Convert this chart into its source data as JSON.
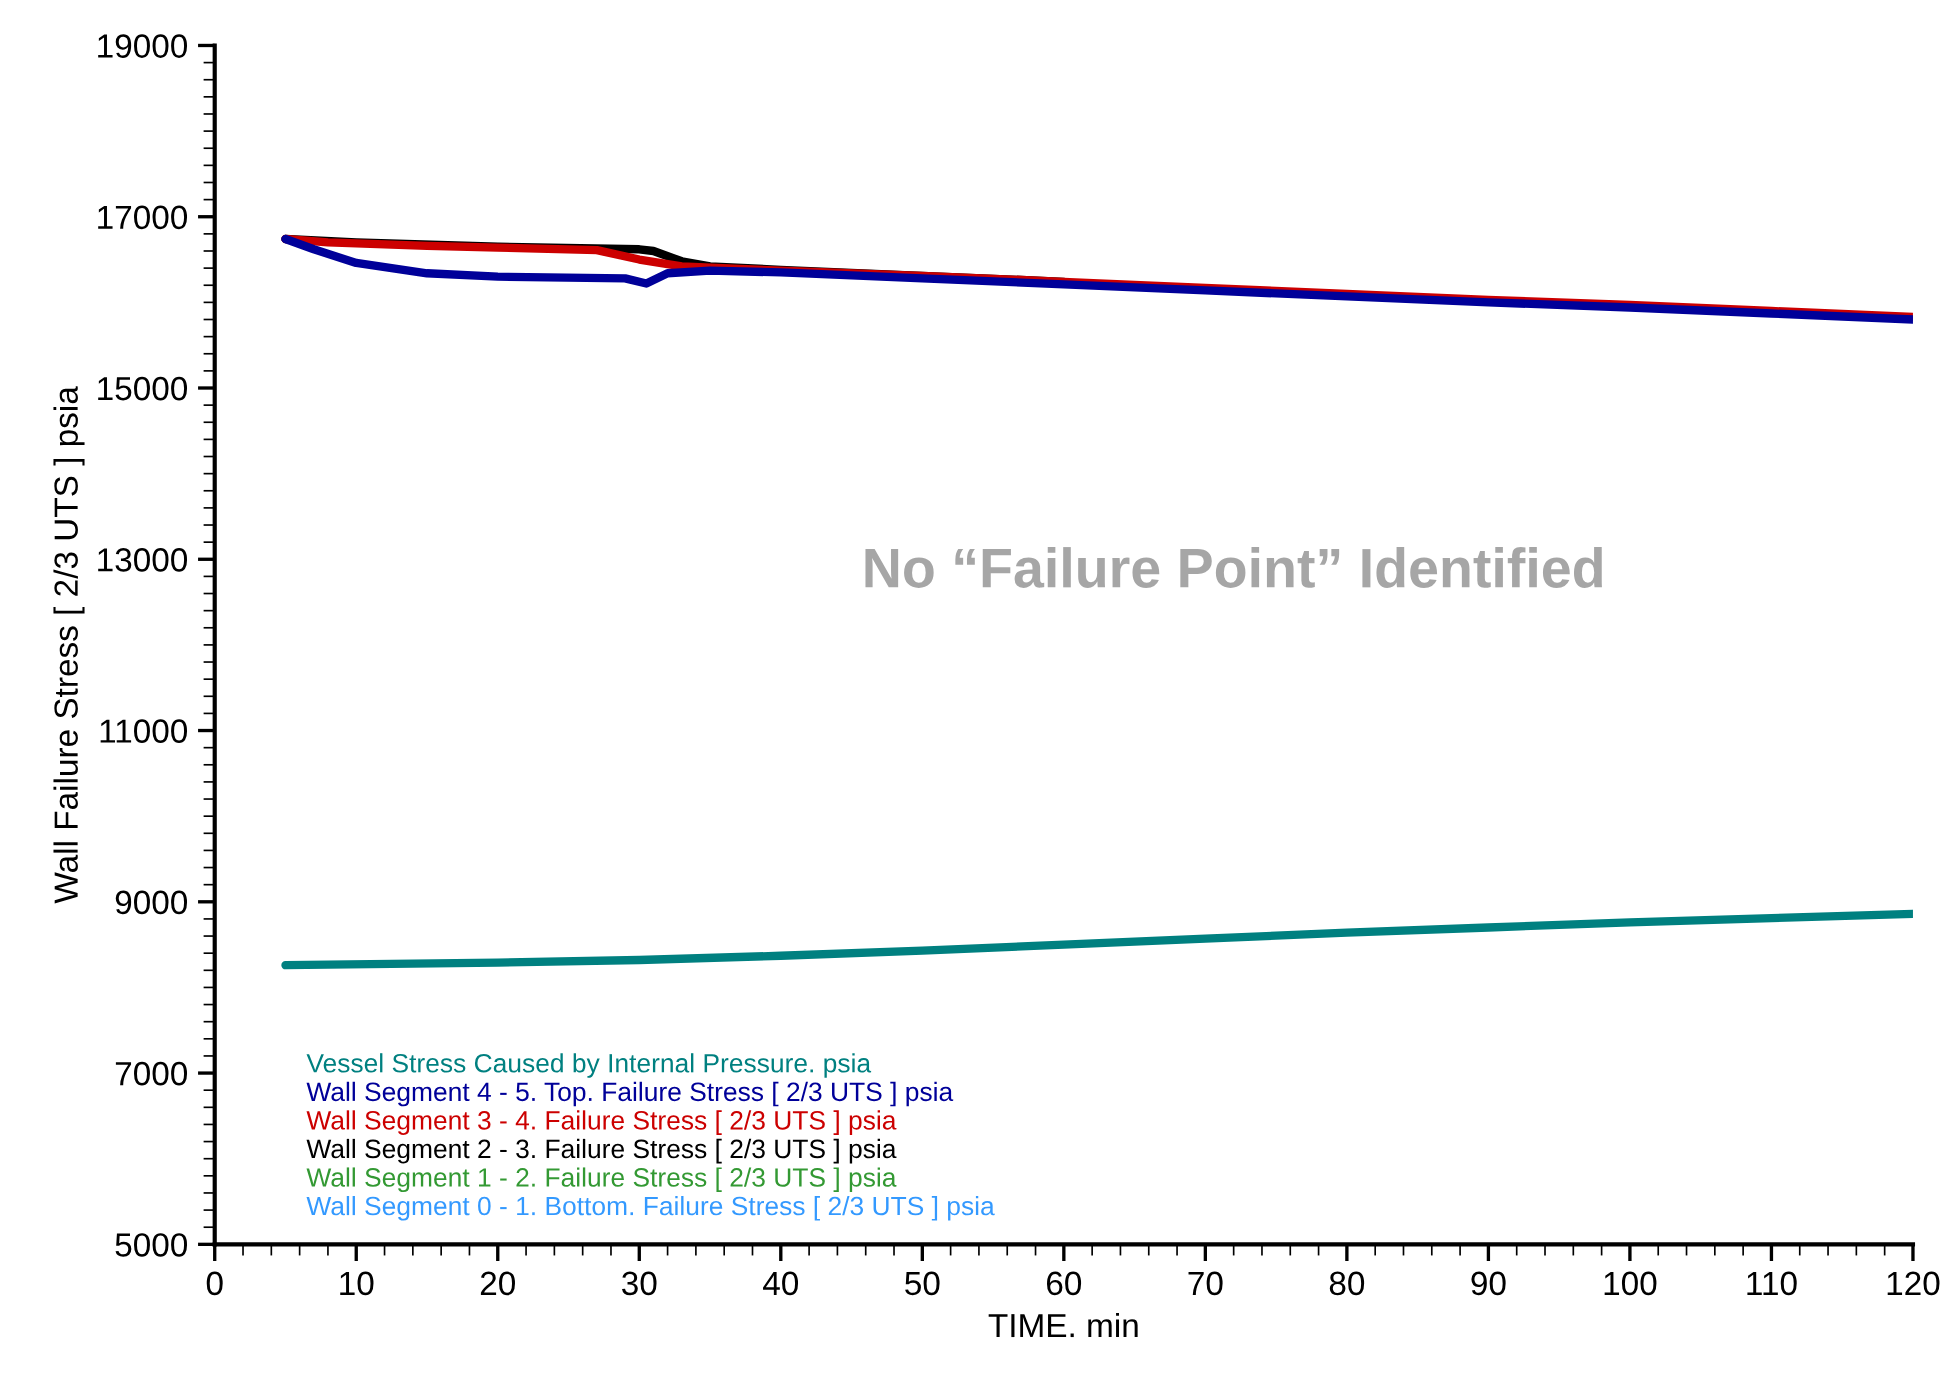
{
  "chart_data": {
    "type": "line",
    "xlabel": "TIME. min",
    "ylabel": "Wall Failure Stress [ 2/3 UTS ] psia",
    "xlim": [
      0,
      120
    ],
    "xticks": [
      0,
      10,
      20,
      30,
      40,
      50,
      60,
      70,
      80,
      90,
      100,
      110,
      120
    ],
    "ylim": [
      5000,
      19000
    ],
    "yticks": [
      5000,
      7000,
      9000,
      11000,
      13000,
      15000,
      17000,
      19000
    ],
    "grid": false,
    "legend": "bottom left",
    "marker": "none",
    "line_style": "solid",
    "annotations": [
      "No “Failure Point” Identified"
    ],
    "series": [
      {
        "name": "Vessel Stress Caused by Internal Pressure. psia",
        "color": "#008080",
        "x": [
          5,
          20,
          30,
          40,
          50,
          60,
          70,
          80,
          90,
          100,
          110,
          120
        ],
        "values": [
          8260,
          8290,
          8320,
          8370,
          8430,
          8500,
          8570,
          8640,
          8700,
          8760,
          8810,
          8860
        ]
      },
      {
        "name": "Wall Segment 4 - 5. Top. Failure Stress [ 2/3 UTS ] psia",
        "color": "#000099",
        "x": [
          5,
          7,
          10,
          15,
          20,
          29,
          30.5,
          32,
          35,
          40,
          50,
          60,
          70,
          80,
          90,
          100,
          110,
          120
        ],
        "values": [
          16740,
          16620,
          16460,
          16340,
          16300,
          16280,
          16220,
          16340,
          16370,
          16350,
          16280,
          16210,
          16140,
          16070,
          16000,
          15940,
          15870,
          15800
        ]
      },
      {
        "name": "Wall Segment 3 - 4. Failure Stress [ 2/3 UTS ] psia",
        "color": "#cc0000",
        "x": [
          5,
          8,
          15,
          20,
          27,
          30,
          33,
          40,
          50,
          60,
          70,
          80,
          90,
          100,
          110,
          120
        ],
        "values": [
          16740,
          16700,
          16660,
          16640,
          16610,
          16500,
          16420,
          16370,
          16310,
          16240,
          16170,
          16100,
          16030,
          15970,
          15900,
          15830
        ]
      },
      {
        "name": "Wall Segment 2 - 3. Failure Stress [ 2/3 UTS ] psia",
        "color": "#000000",
        "x": [
          5,
          10,
          20,
          30,
          31,
          33,
          35,
          40,
          50,
          60
        ],
        "values": [
          16740,
          16700,
          16650,
          16620,
          16600,
          16480,
          16420,
          16380,
          16310,
          16240
        ]
      },
      {
        "name": "Wall Segment 1 - 2. Failure Stress [ 2/3 UTS ] psia",
        "color": "#339933"
      },
      {
        "name": "Wall Segment 0 - 1. Bottom. Failure Stress [ 2/3 UTS ] psia",
        "color": "#3399ff"
      }
    ]
  }
}
